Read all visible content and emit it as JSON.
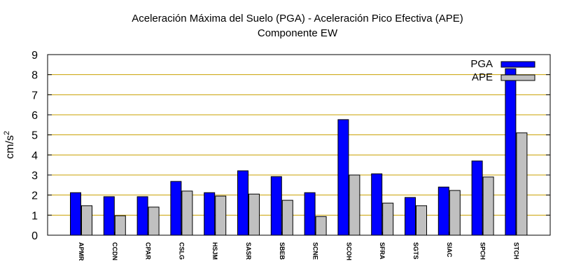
{
  "chart_data": {
    "type": "bar",
    "title": "Aceleración Máxima del Suelo (PGA) -  Aceleración Pico Efectiva (APE)",
    "subtitle": "Componente EW",
    "xlabel": "",
    "ylabel_base": "cm/s",
    "ylabel_exp": "2",
    "ylim": [
      0,
      9
    ],
    "yticks": [
      0,
      1,
      2,
      3,
      4,
      5,
      6,
      7,
      8,
      9
    ],
    "grid": true,
    "legend_position": "top-right",
    "categories": [
      "APMR",
      "CCDN",
      "CPAR",
      "CSLG",
      "HSJM",
      "SASR",
      "SBEB",
      "SCNE",
      "SCOH",
      "SFRA",
      "SGTS",
      "SIAC",
      "SPCH",
      "STCH"
    ],
    "series": [
      {
        "name": "PGA",
        "color": "#0000ff",
        "values": [
          2.12,
          1.92,
          1.92,
          2.68,
          2.12,
          3.21,
          2.92,
          2.12,
          5.76,
          3.06,
          1.88,
          2.4,
          3.7,
          8.3
        ]
      },
      {
        "name": "APE",
        "color": "#c0c0c0",
        "values": [
          1.47,
          0.97,
          1.4,
          2.2,
          1.95,
          2.05,
          1.74,
          0.93,
          3.0,
          1.6,
          1.47,
          2.23,
          2.9,
          5.1
        ]
      }
    ]
  }
}
